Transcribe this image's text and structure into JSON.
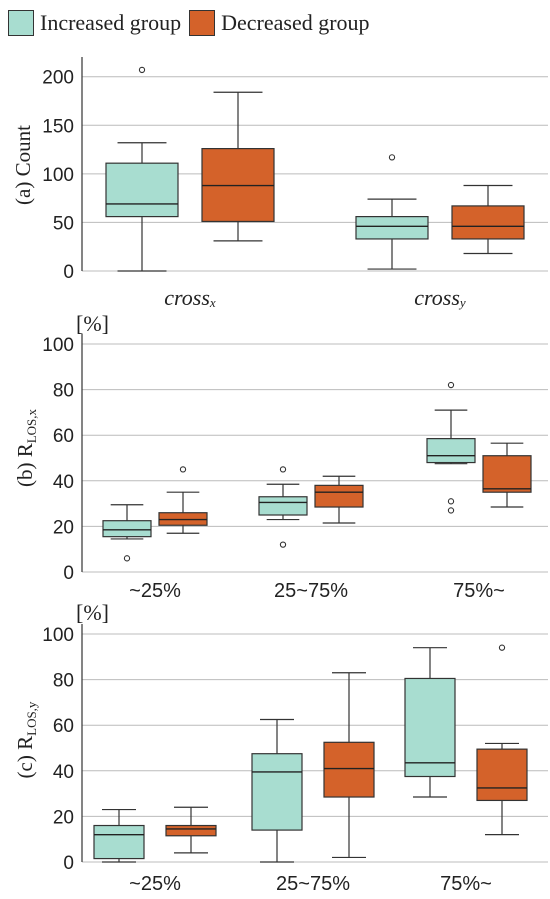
{
  "legend": {
    "items": [
      {
        "label": "Increased group",
        "color": "#a8ddd0"
      },
      {
        "label": "Decreased group",
        "color": "#d4622a"
      }
    ]
  },
  "chart_data": [
    {
      "type": "box",
      "ylabel": "(a) Count",
      "unit": "",
      "ylim": [
        0,
        210
      ],
      "yticks": [
        0,
        50,
        100,
        150,
        200
      ],
      "categories": [
        {
          "label": "cross",
          "sub": "x",
          "italic": true
        },
        {
          "label": "cross",
          "sub": "y",
          "italic": true
        }
      ],
      "series": [
        {
          "name": "Increased group",
          "boxes": [
            {
              "min": 0,
              "q1": 56,
              "median": 69,
              "q3": 111,
              "max": 132,
              "outliers": [
                207
              ]
            },
            {
              "min": 2,
              "q1": 33,
              "median": 46,
              "q3": 56,
              "max": 74,
              "outliers": [
                117
              ]
            }
          ]
        },
        {
          "name": "Decreased group",
          "boxes": [
            {
              "min": 31,
              "q1": 51,
              "median": 88,
              "q3": 126,
              "max": 184,
              "outliers": []
            },
            {
              "min": 18,
              "q1": 33,
              "median": 46,
              "q3": 67,
              "max": 88,
              "outliers": []
            }
          ]
        }
      ]
    },
    {
      "type": "box",
      "ylabel_main": "(b) R",
      "ylabel_sub": "LOS,x",
      "unit": "[%]",
      "ylim": [
        0,
        100
      ],
      "yticks": [
        0,
        20,
        40,
        60,
        80,
        100
      ],
      "categories": [
        {
          "label": "~25%"
        },
        {
          "label": "25~75%"
        },
        {
          "label": "75%~"
        }
      ],
      "series": [
        {
          "name": "Increased group",
          "boxes": [
            {
              "min": 14.5,
              "q1": 15.5,
              "median": 18.5,
              "q3": 22.5,
              "max": 29.5,
              "outliers": [
                6
              ]
            },
            {
              "min": 23,
              "q1": 25,
              "median": 30.5,
              "q3": 33,
              "max": 38.5,
              "outliers": [
                45,
                12
              ]
            },
            {
              "min": 47.5,
              "q1": 48,
              "median": 51,
              "q3": 58.5,
              "max": 71,
              "outliers": [
                82,
                31,
                27
              ]
            }
          ]
        },
        {
          "name": "Decreased group",
          "boxes": [
            {
              "min": 17,
              "q1": 20.5,
              "median": 23,
              "q3": 26,
              "max": 35,
              "outliers": [
                45
              ]
            },
            {
              "min": 21.5,
              "q1": 28.5,
              "median": 35,
              "q3": 38,
              "max": 42,
              "outliers": []
            },
            {
              "min": 28.5,
              "q1": 35,
              "median": 36.5,
              "q3": 51,
              "max": 56.5,
              "outliers": []
            }
          ]
        }
      ]
    },
    {
      "type": "box",
      "ylabel_main": "(c) R",
      "ylabel_sub": "LOS,y",
      "unit": "[%]",
      "ylim": [
        0,
        100
      ],
      "yticks": [
        0,
        20,
        40,
        60,
        80,
        100
      ],
      "categories": [
        {
          "label": "~25%"
        },
        {
          "label": "25~75%"
        },
        {
          "label": "75%~"
        }
      ],
      "series": [
        {
          "name": "Increased group",
          "boxes": [
            {
              "min": 0,
              "q1": 1.5,
              "median": 12,
              "q3": 16,
              "max": 23,
              "outliers": []
            },
            {
              "min": 0,
              "q1": 14,
              "median": 39.5,
              "q3": 47.5,
              "max": 62.5,
              "outliers": []
            },
            {
              "min": 28.5,
              "q1": 37.5,
              "median": 43.5,
              "q3": 80.5,
              "max": 94,
              "outliers": []
            }
          ]
        },
        {
          "name": "Decreased group",
          "boxes": [
            {
              "min": 4,
              "q1": 11.5,
              "median": 14.5,
              "q3": 16,
              "max": 24,
              "outliers": []
            },
            {
              "min": 2,
              "q1": 28.5,
              "median": 41,
              "q3": 52.5,
              "max": 83,
              "outliers": []
            },
            {
              "min": 12,
              "q1": 27,
              "median": 32.5,
              "q3": 49.5,
              "max": 52,
              "outliers": [
                94
              ]
            }
          ]
        }
      ]
    }
  ]
}
